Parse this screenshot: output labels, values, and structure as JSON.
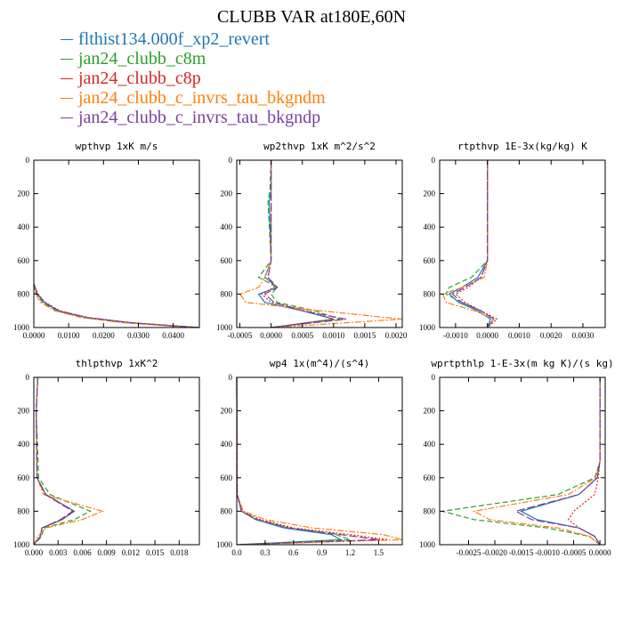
{
  "title": "CLUBB VAR at180E,60N",
  "legend": [
    {
      "label": "flthist134.000f_xp2_revert",
      "color": "#1f77b4"
    },
    {
      "label": "jan24_clubb_c8m",
      "color": "#2ca02c"
    },
    {
      "label": "jan24_clubb_c8p",
      "color": "#d62728"
    },
    {
      "label": "jan24_clubb_c_invrs_tau_bkgndm",
      "color": "#ff7f0e"
    },
    {
      "label": "jan24_clubb_c_invrs_tau_bkgndp",
      "color": "#7b3f9e"
    }
  ],
  "chart_data": [
    {
      "type": "line",
      "title": "wpthvp  1xK m/s",
      "xlim": [
        0,
        0.0475
      ],
      "ylim": [
        1000,
        0
      ],
      "xticks": [
        0,
        0.01,
        0.02,
        0.03,
        0.04
      ],
      "xticklabels": [
        "0.0000",
        "0.0100",
        "0.0200",
        "0.0300",
        "0.0400"
      ],
      "yticks": [
        0,
        200,
        400,
        600,
        800,
        1000
      ],
      "y": [
        740,
        800,
        850,
        900,
        940,
        970,
        990,
        1000
      ],
      "series": [
        {
          "x": [
            0,
            0.001,
            0.003,
            0.007,
            0.015,
            0.027,
            0.04,
            0.0475
          ]
        },
        {
          "x": [
            0,
            0.0008,
            0.0025,
            0.0065,
            0.014,
            0.026,
            0.039,
            0.047
          ]
        },
        {
          "x": [
            0,
            0.0012,
            0.0033,
            0.0075,
            0.0155,
            0.0275,
            0.0405,
            0.0475
          ]
        },
        {
          "x": [
            0,
            0.0005,
            0.002,
            0.006,
            0.0135,
            0.025,
            0.038,
            0.046
          ]
        },
        {
          "x": [
            0,
            0.0011,
            0.0031,
            0.0072,
            0.0152,
            0.0272,
            0.0402,
            0.0475
          ]
        }
      ]
    },
    {
      "type": "line",
      "title": "wp2thvp  1xK m^2/s^2",
      "xlim": [
        -0.00055,
        0.0021
      ],
      "ylim": [
        1000,
        0
      ],
      "xticks": [
        -0.0005,
        0,
        0.0005,
        0.001,
        0.0015,
        0.002
      ],
      "xticklabels": [
        "-0.0005",
        "0.0000",
        "0.0005",
        "0.0010",
        "0.0015",
        "0.0020"
      ],
      "yticks": [
        0,
        200,
        400,
        600,
        800,
        1000
      ],
      "y": [
        0,
        180,
        250,
        600,
        700,
        760,
        800,
        850,
        900,
        950,
        1000
      ],
      "series": [
        {
          "x": [
            0,
            0,
            -3e-05,
            0,
            -0.0001,
            0.0001,
            -0.0002,
            -0.0001,
            0.0005,
            0.001,
            0
          ]
        },
        {
          "x": [
            0,
            -2e-05,
            -5e-05,
            0,
            -0.0002,
            0.0001,
            0,
            0.0001,
            0.0007,
            0.0011,
            0
          ]
        },
        {
          "x": [
            0,
            0,
            0,
            0,
            -5e-05,
            5e-05,
            -0.00015,
            0,
            0.0006,
            0.001,
            0
          ]
        },
        {
          "x": [
            0,
            0,
            0,
            0,
            -0.0001,
            -0.0002,
            -0.0005,
            -0.0004,
            0.0008,
            0.0021,
            0
          ]
        },
        {
          "x": [
            0,
            0,
            0,
            0,
            -5e-05,
            0.0001,
            -0.0001,
            5e-05,
            0.0005,
            0.0012,
            0
          ]
        }
      ]
    },
    {
      "type": "line",
      "title": "rtpthvp  1E-3x(kg/kg) K",
      "xlim": [
        -0.0015,
        0.0037
      ],
      "ylim": [
        1000,
        0
      ],
      "xticks": [
        -0.001,
        0,
        0.001,
        0.002,
        0.003
      ],
      "xticklabels": [
        "-0.0010",
        "0.0000",
        "0.0010",
        "0.0020",
        "0.0030"
      ],
      "yticks": [
        0,
        200,
        400,
        600,
        800,
        1000
      ],
      "y": [
        0,
        600,
        700,
        760,
        800,
        850,
        900,
        950,
        1000
      ],
      "series": [
        {
          "x": [
            0,
            0,
            -0.0003,
            -0.0008,
            -0.0012,
            -0.0009,
            -0.0003,
            0.0001,
            0
          ]
        },
        {
          "x": [
            0,
            0,
            -0.0005,
            -0.0012,
            -0.0013,
            -0.0008,
            -0.0002,
            0.0002,
            0
          ]
        },
        {
          "x": [
            0,
            0,
            -0.0002,
            -0.0006,
            -0.001,
            -0.0007,
            -0.0002,
            0.0003,
            0
          ]
        },
        {
          "x": [
            0,
            0,
            -0.0001,
            -0.0008,
            -0.0014,
            -0.0013,
            -0.0004,
            0.0002,
            0
          ]
        },
        {
          "x": [
            0,
            0,
            -0.0002,
            -0.0007,
            -0.0011,
            -0.0008,
            -0.0002,
            0.0002,
            0
          ]
        }
      ]
    },
    {
      "type": "line",
      "title": "thlpthvp  1xK^2",
      "xlim": [
        0,
        0.0205
      ],
      "ylim": [
        1000,
        0
      ],
      "xticks": [
        0,
        0.003,
        0.006,
        0.009,
        0.012,
        0.015,
        0.018
      ],
      "xticklabels": [
        "0.000",
        "0.003",
        "0.006",
        "0.009",
        "0.012",
        "0.015",
        "0.018"
      ],
      "yticks": [
        0,
        200,
        400,
        600,
        800,
        1000
      ],
      "y": [
        0,
        200,
        600,
        700,
        800,
        850,
        900,
        950,
        1000
      ],
      "series": [
        {
          "x": [
            0.0005,
            0.0003,
            0.0004,
            0.0015,
            0.005,
            0.0035,
            0.001,
            0.0008,
            0
          ]
        },
        {
          "x": [
            0.0005,
            0.0003,
            0.0006,
            0.002,
            0.007,
            0.005,
            0.0012,
            0.001,
            0
          ]
        },
        {
          "x": [
            0.0005,
            0.0003,
            0.0004,
            0.0015,
            0.005,
            0.0035,
            0.001,
            0.0008,
            0
          ]
        },
        {
          "x": [
            0.0005,
            0.0003,
            0.0004,
            0.0012,
            0.0085,
            0.006,
            0.0015,
            0.0005,
            0
          ]
        },
        {
          "x": [
            0.0005,
            0.0003,
            0.0004,
            0.0014,
            0.0048,
            0.0033,
            0.001,
            0.0008,
            0
          ]
        }
      ]
    },
    {
      "type": "line",
      "title": "wp4  1x(m^4)/(s^4)",
      "xlim": [
        0,
        1.75
      ],
      "ylim": [
        1000,
        0
      ],
      "xticks": [
        0,
        0.3,
        0.6,
        0.9,
        1.2,
        1.5
      ],
      "xticklabels": [
        "0.0",
        "0.3",
        "0.6",
        "0.9",
        "1.2",
        "1.5"
      ],
      "yticks": [
        0,
        200,
        400,
        600,
        800,
        1000
      ],
      "y": [
        0,
        700,
        800,
        850,
        900,
        940,
        970,
        1000
      ],
      "series": [
        {
          "x": [
            0,
            0.005,
            0.05,
            0.2,
            0.5,
            1.0,
            1.1,
            0
          ]
        },
        {
          "x": [
            0,
            0.005,
            0.05,
            0.2,
            0.55,
            1.05,
            1.2,
            0
          ]
        },
        {
          "x": [
            0,
            0.005,
            0.06,
            0.25,
            0.6,
            1.2,
            1.6,
            0
          ]
        },
        {
          "x": [
            0,
            0.005,
            0.07,
            0.3,
            0.8,
            1.55,
            1.75,
            0
          ]
        },
        {
          "x": [
            0,
            0.005,
            0.05,
            0.22,
            0.55,
            1.1,
            1.5,
            0
          ]
        }
      ]
    },
    {
      "type": "line",
      "title": "wprtpthlp  1-E-3x(m kg K)/(s kg)",
      "xlim": [
        -0.00305,
        0.0001
      ],
      "ylim": [
        1000,
        0
      ],
      "xticks": [
        -0.0025,
        -0.002,
        -0.0015,
        -0.001,
        -0.0005,
        0
      ],
      "xticklabels": [
        "-0.0025",
        "-0.0020",
        "-0.0015",
        "-0.0010",
        "-0.0005",
        "0.0000"
      ],
      "yticks": [
        0,
        200,
        400,
        600,
        800,
        1000
      ],
      "y": [
        0,
        500,
        600,
        700,
        800,
        850,
        900,
        950,
        1000
      ],
      "series": [
        {
          "x": [
            0,
            0,
            -5e-05,
            -0.0004,
            -0.0015,
            -0.0012,
            -0.0004,
            -0.0001,
            0
          ]
        },
        {
          "x": [
            0,
            0,
            -0.0001,
            -0.0008,
            -0.003,
            -0.0024,
            -0.001,
            -0.0002,
            0
          ]
        },
        {
          "x": [
            0,
            0,
            -3e-05,
            -0.0001,
            -0.0005,
            -0.0006,
            -0.0004,
            -0.0001,
            0
          ]
        },
        {
          "x": [
            0,
            0,
            -8e-05,
            -0.0006,
            -0.0024,
            -0.0021,
            -0.0008,
            -0.0002,
            0
          ]
        },
        {
          "x": [
            0,
            0,
            -5e-05,
            -0.0004,
            -0.0016,
            -0.0013,
            -0.0004,
            -0.0001,
            0
          ]
        }
      ]
    }
  ]
}
